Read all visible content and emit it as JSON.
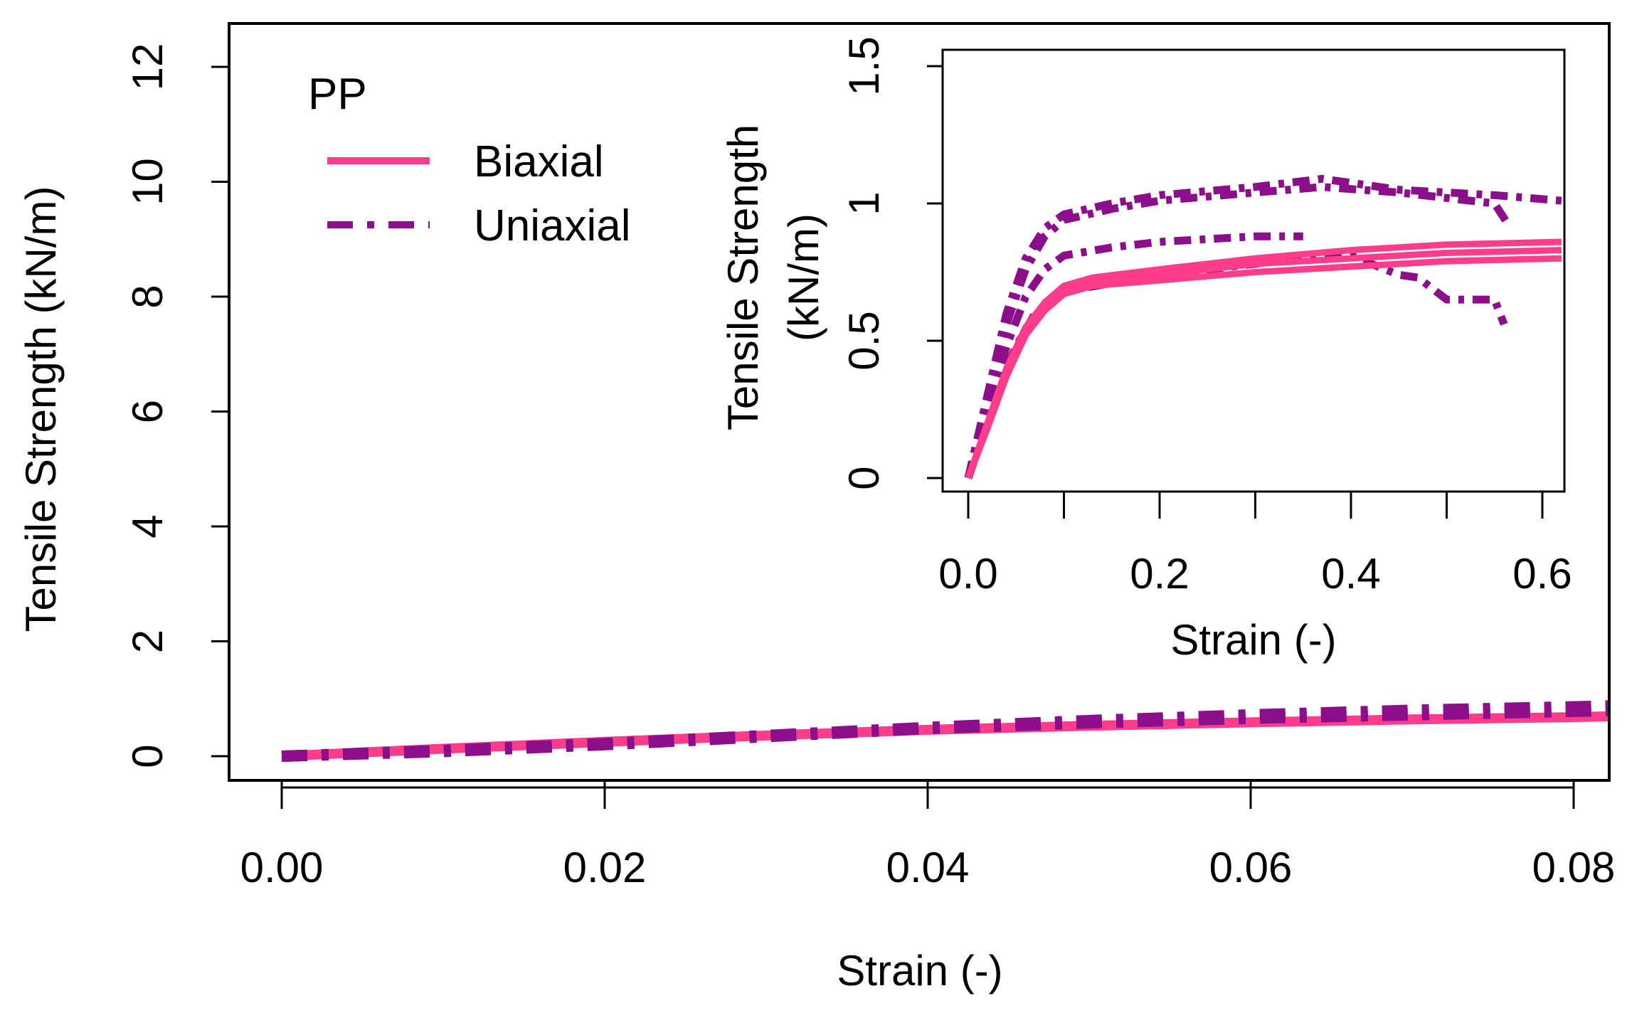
{
  "chart_data": [
    {
      "type": "line",
      "title": "",
      "xlabel": "Strain (-)",
      "ylabel": "Tensile Strength  (kN/m)",
      "xlim": [
        0.0,
        0.083
      ],
      "ylim": [
        0,
        12.5
      ],
      "xticks": [
        "0.00",
        "0.02",
        "0.04",
        "0.06",
        "0.08"
      ],
      "yticks": [
        "0",
        "2",
        "4",
        "6",
        "8",
        "10",
        "12"
      ],
      "xtick_values": [
        0.0,
        0.02,
        0.04,
        0.06,
        0.08
      ],
      "ytick_values": [
        0,
        2,
        4,
        6,
        8,
        10,
        12
      ],
      "legend": {
        "title": "PP",
        "position": "top-left",
        "entries": [
          {
            "label": "Biaxial",
            "style": "solid",
            "color": "#ff3d8b"
          },
          {
            "label": "Uniaxial",
            "style": "dash-dot",
            "color": "#8b0e8b"
          }
        ]
      },
      "series": [
        {
          "name": "Biaxial",
          "style": "solid",
          "color": "#ff3d8b",
          "x": [
            0.0,
            0.01,
            0.02,
            0.03,
            0.04,
            0.05,
            0.06,
            0.07,
            0.08,
            0.083
          ],
          "y": [
            0.0,
            0.13,
            0.25,
            0.36,
            0.46,
            0.53,
            0.59,
            0.64,
            0.68,
            0.7
          ]
        },
        {
          "name": "Uniaxial",
          "style": "dash-dot",
          "color": "#8b0e8b",
          "x": [
            0.0,
            0.01,
            0.02,
            0.03,
            0.04,
            0.05,
            0.06,
            0.07,
            0.08,
            0.083
          ],
          "y": [
            0.0,
            0.1,
            0.22,
            0.36,
            0.5,
            0.62,
            0.72,
            0.8,
            0.86,
            0.88
          ]
        },
        {
          "name": "Uniaxial",
          "style": "dash-dot",
          "color": "#8b0e8b",
          "x": [
            0.0,
            0.01,
            0.02,
            0.03,
            0.04,
            0.05,
            0.06,
            0.07,
            0.08,
            0.083
          ],
          "y": [
            0.0,
            0.08,
            0.2,
            0.34,
            0.48,
            0.58,
            0.66,
            0.72,
            0.78,
            0.8
          ]
        }
      ]
    },
    {
      "type": "line",
      "title": "inset",
      "xlabel": "Strain (-)",
      "ylabel": "Tensile Strength\n(kN/m)",
      "ylabel_lines": [
        "Tensile Strength",
        "(kN/m)"
      ],
      "xlim": [
        -0.025,
        0.62
      ],
      "ylim": [
        -0.06,
        1.56
      ],
      "xticks": [
        "0.0",
        "0.2",
        "0.4",
        "0.6"
      ],
      "yticks": [
        "0",
        "0.5",
        "1",
        "1.5"
      ],
      "xtick_values": [
        0.0,
        0.2,
        0.4,
        0.6
      ],
      "xtick_minor": [
        0.1,
        0.3,
        0.5
      ],
      "ytick_values": [
        0,
        0.5,
        1,
        1.5
      ],
      "series": [
        {
          "name": "Biaxial",
          "style": "solid",
          "color": "#ff3d8b",
          "x": [
            0.0,
            0.02,
            0.04,
            0.06,
            0.08,
            0.1,
            0.13,
            0.2,
            0.3,
            0.4,
            0.5,
            0.62
          ],
          "y": [
            0.0,
            0.2,
            0.4,
            0.55,
            0.64,
            0.7,
            0.73,
            0.76,
            0.8,
            0.83,
            0.85,
            0.86
          ]
        },
        {
          "name": "Biaxial",
          "style": "solid",
          "color": "#ff3d8b",
          "x": [
            0.0,
            0.02,
            0.04,
            0.06,
            0.08,
            0.1,
            0.13,
            0.2,
            0.3,
            0.4,
            0.5,
            0.62
          ],
          "y": [
            0.0,
            0.18,
            0.37,
            0.52,
            0.61,
            0.67,
            0.7,
            0.72,
            0.75,
            0.77,
            0.79,
            0.8
          ]
        },
        {
          "name": "Biaxial",
          "style": "solid",
          "color": "#ff3d8b",
          "x": [
            0.0,
            0.02,
            0.04,
            0.06,
            0.08,
            0.1,
            0.13,
            0.2,
            0.3,
            0.4,
            0.5,
            0.62
          ],
          "y": [
            0.0,
            0.19,
            0.39,
            0.54,
            0.63,
            0.69,
            0.72,
            0.74,
            0.78,
            0.8,
            0.82,
            0.83
          ]
        },
        {
          "name": "Uniaxial",
          "style": "dash-dot",
          "color": "#8b0e8b",
          "x": [
            0.0,
            0.02,
            0.04,
            0.06,
            0.08,
            0.1,
            0.15,
            0.2,
            0.3,
            0.37,
            0.45,
            0.55,
            0.62
          ],
          "y": [
            0.0,
            0.3,
            0.6,
            0.8,
            0.91,
            0.96,
            1.0,
            1.03,
            1.06,
            1.09,
            1.05,
            1.03,
            1.01
          ]
        },
        {
          "name": "Uniaxial",
          "style": "dash-dot",
          "color": "#8b0e8b",
          "x": [
            0.0,
            0.02,
            0.04,
            0.06,
            0.08,
            0.1,
            0.15,
            0.2,
            0.3,
            0.37,
            0.45,
            0.5,
            0.55,
            0.565
          ],
          "y": [
            0.0,
            0.28,
            0.56,
            0.76,
            0.88,
            0.94,
            0.98,
            1.01,
            1.04,
            1.06,
            1.04,
            1.02,
            1.0,
            0.92
          ]
        },
        {
          "name": "Uniaxial",
          "style": "dash-dot",
          "color": "#8b0e8b",
          "x": [
            0.0,
            0.02,
            0.04,
            0.06,
            0.08,
            0.1,
            0.15,
            0.2,
            0.3,
            0.35
          ],
          "y": [
            0.0,
            0.24,
            0.48,
            0.66,
            0.76,
            0.81,
            0.84,
            0.86,
            0.88,
            0.88
          ]
        },
        {
          "name": "Uniaxial",
          "style": "dash-dot",
          "color": "#8b0e8b",
          "x": [
            0.0,
            0.015,
            0.03,
            0.05,
            0.07,
            0.1,
            0.2,
            0.3,
            0.35,
            0.4,
            0.45,
            0.47,
            0.5,
            0.55,
            0.56
          ],
          "y": [
            0.0,
            0.15,
            0.32,
            0.48,
            0.6,
            0.68,
            0.74,
            0.78,
            0.81,
            0.81,
            0.74,
            0.73,
            0.65,
            0.65,
            0.56
          ]
        }
      ]
    }
  ]
}
